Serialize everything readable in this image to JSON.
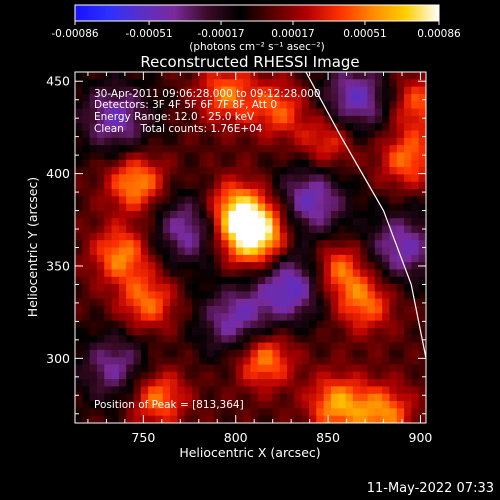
{
  "chart_data": {
    "type": "heatmap",
    "title": "Reconstructed RHESSI Image",
    "xlabel": "Heliocentric X (arcsec)",
    "ylabel": "Heliocentric Y (arcsec)",
    "xlim": [
      713,
      903
    ],
    "ylim": [
      265,
      455
    ],
    "x_ticks": [
      750,
      800,
      850,
      900
    ],
    "y_ticks": [
      300,
      350,
      400,
      450
    ],
    "colorbar": {
      "range": [
        -0.00086,
        0.00086
      ],
      "ticks": [
        "-0.00086",
        "-0.00051",
        "-0.00017",
        "0.00017",
        "0.00051",
        "0.00086"
      ],
      "unit_label": "(photons cm⁻² s⁻¹ asec⁻²)",
      "colormap": [
        "#1a10ff",
        "#2b30ff",
        "#5a2fc8",
        "#7a2a9a",
        "#3a0a26",
        "#000000",
        "#5a0000",
        "#b00000",
        "#ff3000",
        "#ff8a00",
        "#ffd000",
        "#ffffff"
      ]
    },
    "annotations": [
      "30-Apr-2011 09:06:28.000 to 09:12:28.000",
      "Detectors: 3F 4F 5F 6F 7F 8F, Att 0",
      "Energy Range: 12.0 - 25.0 keV",
      "Clean     Total counts: 1.76E+04"
    ],
    "peak_label": "Position of Peak = [813,364]",
    "peak": [
      813,
      364
    ],
    "limb_points": [
      [
        838,
        455
      ],
      [
        857,
        420
      ],
      [
        880,
        380
      ],
      [
        895,
        340
      ],
      [
        903,
        300
      ]
    ],
    "sources": [
      {
        "x": 810,
        "y": 368,
        "amp": 1.0
      },
      {
        "x": 798,
        "y": 381,
        "amp": 0.45
      },
      {
        "x": 746,
        "y": 395,
        "amp": 0.55
      },
      {
        "x": 738,
        "y": 356,
        "amp": 0.5
      },
      {
        "x": 752,
        "y": 330,
        "amp": 0.45
      },
      {
        "x": 757,
        "y": 279,
        "amp": 0.5
      },
      {
        "x": 815,
        "y": 300,
        "amp": 0.55
      },
      {
        "x": 855,
        "y": 275,
        "amp": 0.55
      },
      {
        "x": 880,
        "y": 270,
        "amp": 0.5
      },
      {
        "x": 855,
        "y": 348,
        "amp": 0.5
      },
      {
        "x": 870,
        "y": 330,
        "amp": 0.45
      },
      {
        "x": 893,
        "y": 408,
        "amp": 0.45
      },
      {
        "x": 898,
        "y": 438,
        "amp": 0.4
      },
      {
        "x": 795,
        "y": 443,
        "amp": 0.45
      },
      {
        "x": 823,
        "y": 435,
        "amp": 0.4
      },
      {
        "x": 850,
        "y": 418,
        "amp": 0.4
      }
    ],
    "negatives": [
      {
        "x": 830,
        "y": 340,
        "amp": 0.6
      },
      {
        "x": 840,
        "y": 385,
        "amp": 0.55
      },
      {
        "x": 775,
        "y": 370,
        "amp": 0.5
      },
      {
        "x": 800,
        "y": 320,
        "amp": 0.5
      },
      {
        "x": 735,
        "y": 430,
        "amp": 0.5
      },
      {
        "x": 865,
        "y": 440,
        "amp": 0.55
      },
      {
        "x": 890,
        "y": 360,
        "amp": 0.5
      },
      {
        "x": 735,
        "y": 295,
        "amp": 0.45
      }
    ]
  },
  "run_date": "11-May-2022 07:33"
}
